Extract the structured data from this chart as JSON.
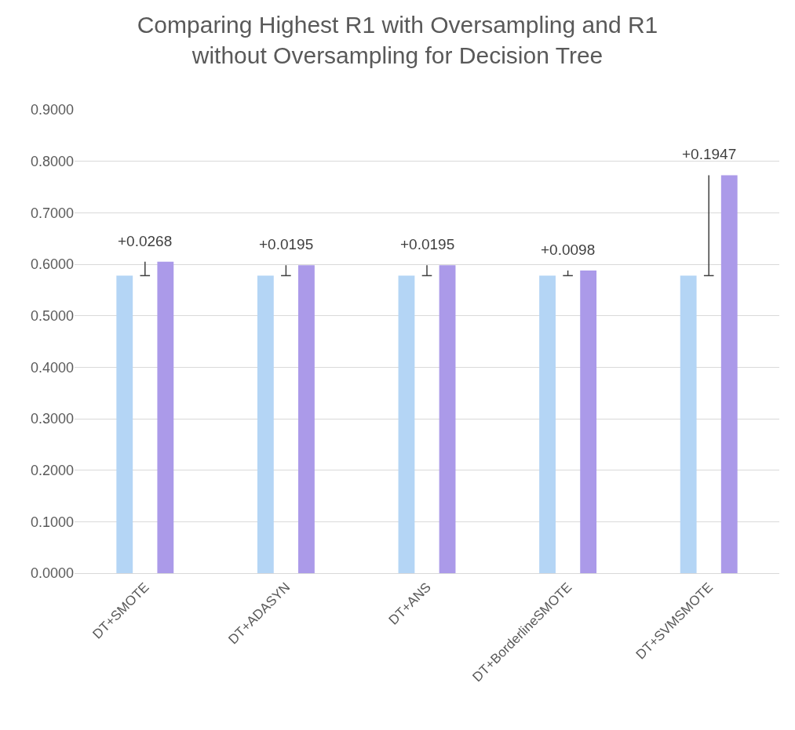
{
  "chart_data": {
    "type": "bar",
    "title": "Comparing Highest R1 with Oversampling and R1 without Oversampling for Decision Tree",
    "categories": [
      "DT+SMOTE",
      "DT+ADASYN",
      "DT+ANS",
      "DT+BorderlineSMOTE",
      "DT+SVMSMOTE"
    ],
    "series": [
      {
        "color": "#b4d5f5",
        "values": [
          0.578,
          0.578,
          0.578,
          0.578,
          0.578
        ]
      },
      {
        "color": "#ab9ae9",
        "values": [
          0.605,
          0.598,
          0.598,
          0.588,
          0.773
        ]
      }
    ],
    "annotations": [
      "+0.0268",
      "+0.0195",
      "+0.0195",
      "+0.0098",
      "+0.1947"
    ],
    "ylim": [
      0,
      0.9
    ],
    "yticks": [
      {
        "value": 0,
        "label": "0.0000"
      },
      {
        "value": 0.1,
        "label": "0.1000"
      },
      {
        "value": 0.2,
        "label": "0.2000"
      },
      {
        "value": 0.3,
        "label": "0.3000"
      },
      {
        "value": 0.4,
        "label": "0.4000"
      },
      {
        "value": 0.5,
        "label": "0.5000"
      },
      {
        "value": 0.6,
        "label": "0.6000"
      },
      {
        "value": 0.7,
        "label": "0.7000"
      },
      {
        "value": 0.8,
        "label": "0.8000"
      },
      {
        "value": 0.9,
        "label": "0.9000"
      }
    ],
    "grid": "y"
  }
}
